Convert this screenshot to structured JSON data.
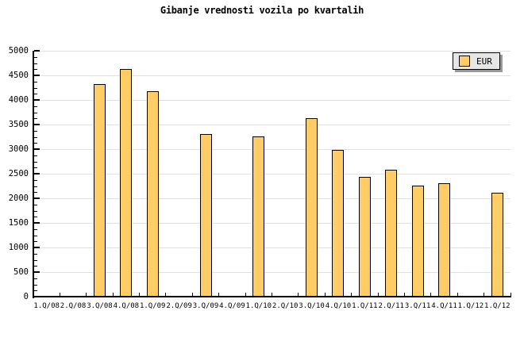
{
  "title": "Gibanje vrednosti vozila po kvartalih",
  "legend": {
    "label": "EUR"
  },
  "colors": {
    "bar_fill": "#FFCC66",
    "bar_border": "#000000",
    "gridline": "#E0E0E0",
    "axis": "#000000",
    "legend_bg": "#E6E6E6",
    "legend_shadow": "#999999",
    "background": "#FFFFFF"
  },
  "chart_data": {
    "type": "bar",
    "title": "Gibanje vrednosti vozila po kvartalih",
    "categories": [
      "1.Q/08",
      "2.Q/08",
      "3.Q/08",
      "4.Q/08",
      "1.Q/09",
      "2.Q/09",
      "3.Q/09",
      "4.Q/09",
      "1.Q/10",
      "2.Q/10",
      "3.Q/10",
      "4.Q/10",
      "1.Q/11",
      "2.Q/11",
      "3.Q/11",
      "4.Q/11",
      "1.Q/12",
      "1.Q/12"
    ],
    "series": [
      {
        "name": "EUR",
        "values": [
          null,
          null,
          4320,
          4630,
          4170,
          null,
          3300,
          null,
          3250,
          null,
          3630,
          2980,
          2430,
          2580,
          2250,
          2310,
          null,
          2110
        ]
      }
    ],
    "ylim": [
      0,
      5000
    ],
    "ytick_step": 500,
    "yminor_step": 125,
    "ytick_labels": [
      "0",
      "500",
      "1000",
      "1500",
      "2000",
      "2500",
      "3000",
      "3500",
      "4000",
      "4500",
      "5000"
    ],
    "grid": "horizontal-major",
    "legend_position": "top-right"
  }
}
